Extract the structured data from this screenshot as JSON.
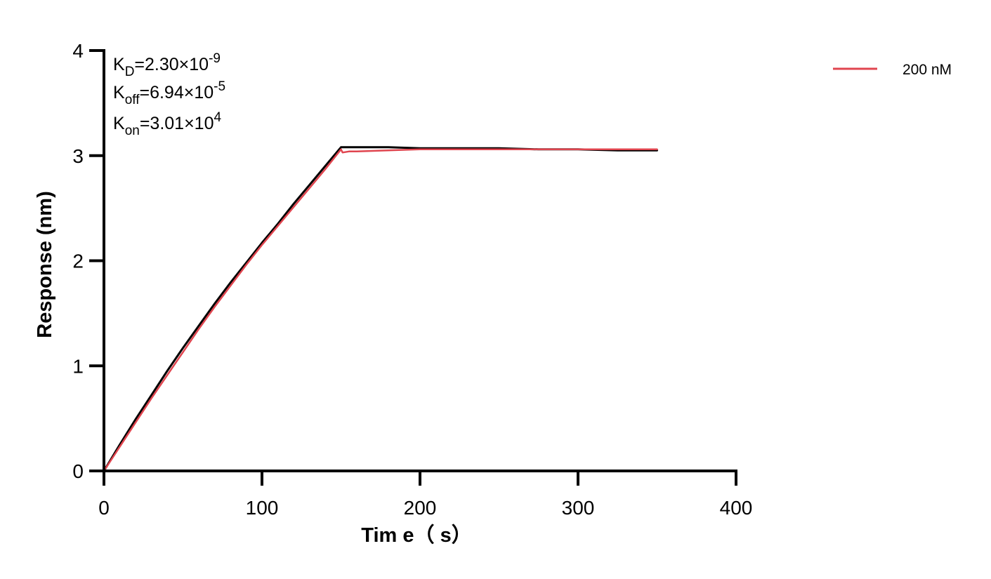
{
  "chart_data": {
    "type": "line",
    "xlabel": "Tim e（ s）",
    "ylabel": "Response (nm)",
    "xlim": [
      0,
      400
    ],
    "ylim": [
      0,
      4
    ],
    "x_ticks": [
      "0",
      "100",
      "200",
      "300",
      "400"
    ],
    "y_ticks": [
      "0",
      "1",
      "2",
      "3",
      "4"
    ],
    "grid": false,
    "legend_position": "top-right",
    "annotations": [
      {
        "base": "K",
        "sub": "D",
        "value": "=2.30×10",
        "sup": "-9"
      },
      {
        "base": "K",
        "sub": "off",
        "value": "=6.94×10",
        "sup": "-5"
      },
      {
        "base": "K",
        "sub": "on",
        "value": "=3.01×10",
        "sup": "4"
      }
    ],
    "series": [
      {
        "name": "200 nM",
        "color": "#e0454f",
        "x": [
          0,
          10,
          20,
          30,
          40,
          50,
          60,
          70,
          80,
          90,
          100,
          110,
          120,
          130,
          140,
          150,
          151,
          155,
          160,
          180,
          200,
          225,
          250,
          275,
          300,
          325,
          350
        ],
        "y": [
          0,
          0.23,
          0.46,
          0.69,
          0.91,
          1.13,
          1.35,
          1.56,
          1.76,
          1.96,
          2.15,
          2.33,
          2.51,
          2.69,
          2.87,
          3.06,
          3.03,
          3.04,
          3.04,
          3.05,
          3.06,
          3.06,
          3.06,
          3.06,
          3.06,
          3.06,
          3.06
        ]
      },
      {
        "color": "#000000",
        "x": [
          0,
          10,
          20,
          30,
          40,
          50,
          60,
          70,
          80,
          90,
          100,
          110,
          120,
          130,
          140,
          150,
          160,
          180,
          200,
          225,
          250,
          275,
          300,
          325,
          350
        ],
        "y": [
          0,
          0.25,
          0.49,
          0.72,
          0.95,
          1.17,
          1.38,
          1.59,
          1.79,
          1.98,
          2.17,
          2.35,
          2.54,
          2.72,
          2.9,
          3.08,
          3.08,
          3.08,
          3.07,
          3.07,
          3.07,
          3.06,
          3.06,
          3.05,
          3.05
        ]
      }
    ]
  }
}
